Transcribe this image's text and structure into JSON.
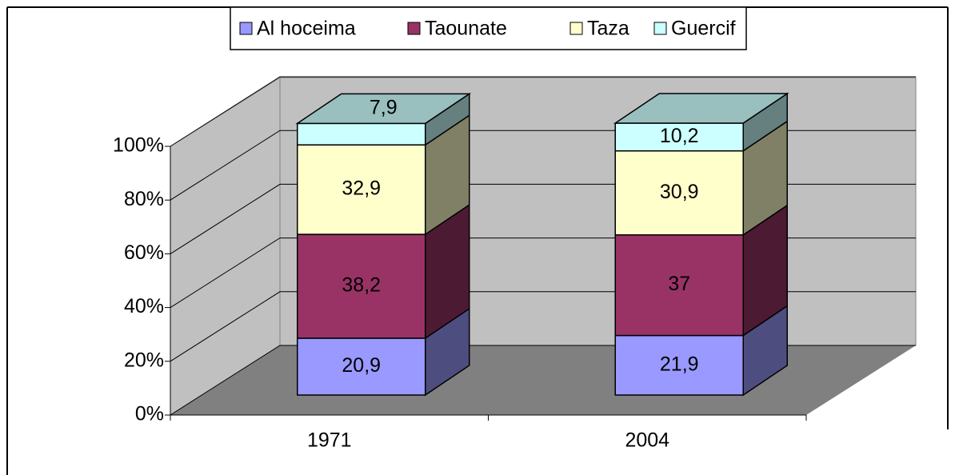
{
  "chart_data": {
    "type": "bar3d_stacked",
    "categories": [
      "1971",
      "2004"
    ],
    "series": [
      {
        "name": "Al hoceima",
        "color": "#9999ff",
        "values": [
          20.9,
          21.9
        ],
        "value_labels": [
          "20,9",
          "21,9"
        ]
      },
      {
        "name": "Taounate",
        "color": "#993366",
        "values": [
          38.2,
          37
        ],
        "value_labels": [
          "38,2",
          "37"
        ]
      },
      {
        "name": "Taza",
        "color": "#ffffcc",
        "values": [
          32.9,
          30.9
        ],
        "value_labels": [
          "32,9",
          "30,9"
        ]
      },
      {
        "name": "Guercif",
        "color": "#ccffff",
        "values": [
          7.9,
          10.2
        ],
        "value_labels": [
          "7,9",
          "10,2"
        ]
      }
    ],
    "ylim": [
      0,
      100
    ],
    "yticks": [
      {
        "value": 0,
        "label": "0%"
      },
      {
        "value": 20,
        "label": "20%"
      },
      {
        "value": 40,
        "label": "40%"
      },
      {
        "value": 60,
        "label": "60%"
      },
      {
        "value": 80,
        "label": "80%"
      },
      {
        "value": 100,
        "label": "100%"
      }
    ],
    "grid": true,
    "legend": "top"
  }
}
